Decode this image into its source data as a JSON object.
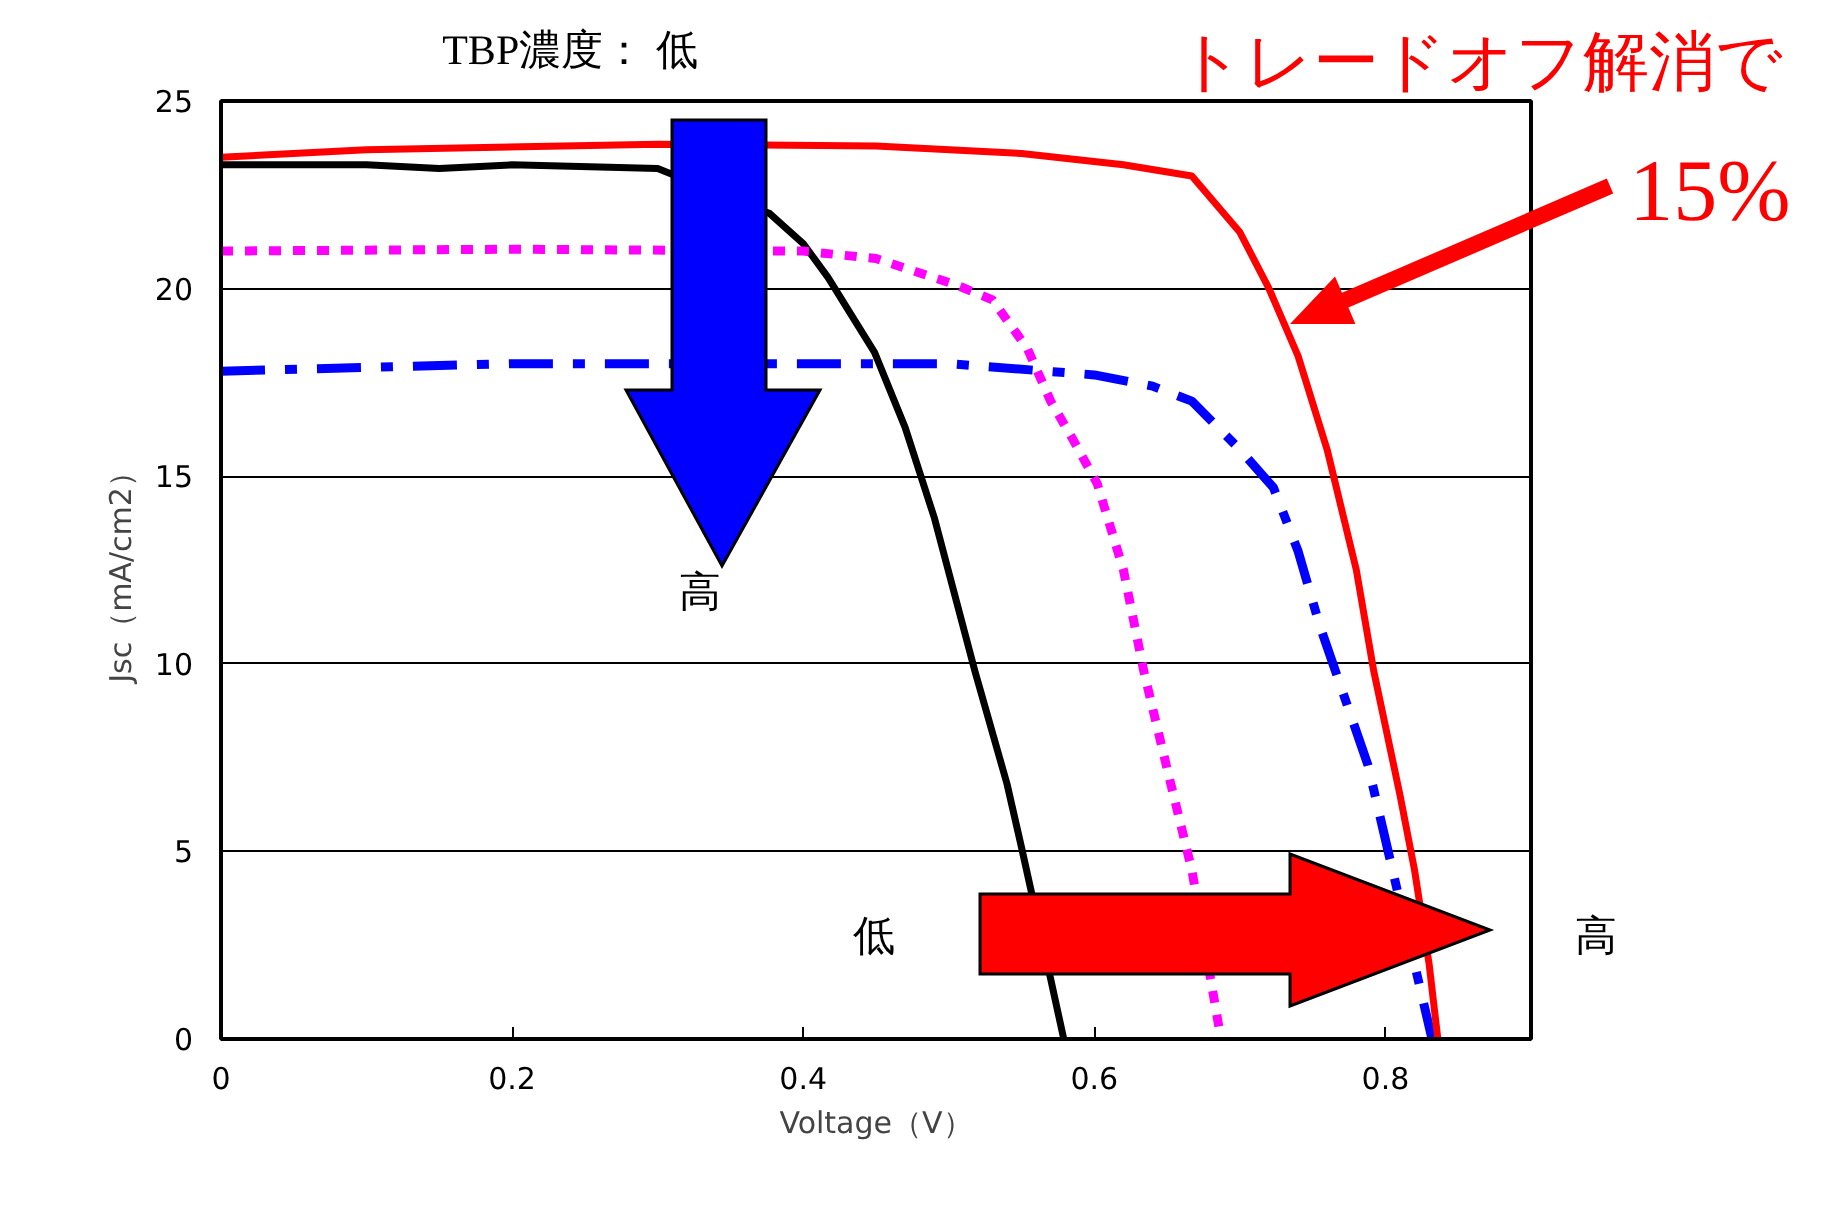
{
  "chart_data": {
    "type": "line",
    "title": "TBP濃度： 低",
    "xlabel": "Voltage（V）",
    "ylabel": "Jsc（mA/cm2）",
    "xlim": [
      0,
      0.9
    ],
    "ylim": [
      0,
      25
    ],
    "xticks": [
      0,
      0.2,
      0.4,
      0.6,
      0.8
    ],
    "yticks": [
      0,
      5,
      10,
      15,
      20,
      25
    ],
    "grid": "y",
    "annotations": [
      "高",
      "低",
      "高",
      "トレードオフ解消で",
      "15%"
    ],
    "series": [
      {
        "color": "#000000",
        "line_style": "solid",
        "x": [
          0,
          0.1,
          0.15,
          0.2,
          0.3,
          0.377,
          0.4,
          0.417,
          0.449,
          0.47,
          0.49,
          0.518,
          0.54,
          0.55,
          0.57,
          0.579
        ],
        "values": [
          23.3,
          23.3,
          23.2,
          23.3,
          23.2,
          22.0,
          21.2,
          20.3,
          18.3,
          16.3,
          13.9,
          9.8,
          6.8,
          5.1,
          1.6,
          0
        ]
      },
      {
        "color": "#ff00ff",
        "line_style": "dotted",
        "x": [
          0,
          0.2,
          0.4,
          0.45,
          0.505,
          0.53,
          0.554,
          0.57,
          0.585,
          0.602,
          0.62,
          0.634,
          0.65,
          0.667,
          0.687
        ],
        "values": [
          21.0,
          21.05,
          21.0,
          20.8,
          20.1,
          19.7,
          18.4,
          17.0,
          16.0,
          14.8,
          12.5,
          9.8,
          7.2,
          4.5,
          0
        ]
      },
      {
        "color": "#0000ff",
        "line_style": "dashdot",
        "x": [
          0,
          0.2,
          0.5,
          0.6,
          0.64,
          0.667,
          0.699,
          0.723,
          0.74,
          0.755,
          0.788,
          0.832
        ],
        "values": [
          17.8,
          18.0,
          18.0,
          17.7,
          17.4,
          17.0,
          15.75,
          14.7,
          13,
          11.0,
          7.3,
          0
        ]
      },
      {
        "color": "#ff0000",
        "line_style": "solid",
        "x": [
          0,
          0.1,
          0.3,
          0.45,
          0.55,
          0.62,
          0.667,
          0.7,
          0.72,
          0.74,
          0.76,
          0.78,
          0.792,
          0.81,
          0.82,
          0.83,
          0.836
        ],
        "values": [
          23.5,
          23.7,
          23.85,
          23.8,
          23.6,
          23.3,
          23.0,
          21.5,
          20,
          18.2,
          15.7,
          12.5,
          9.8,
          6.5,
          4.5,
          2,
          0
        ]
      }
    ]
  }
}
